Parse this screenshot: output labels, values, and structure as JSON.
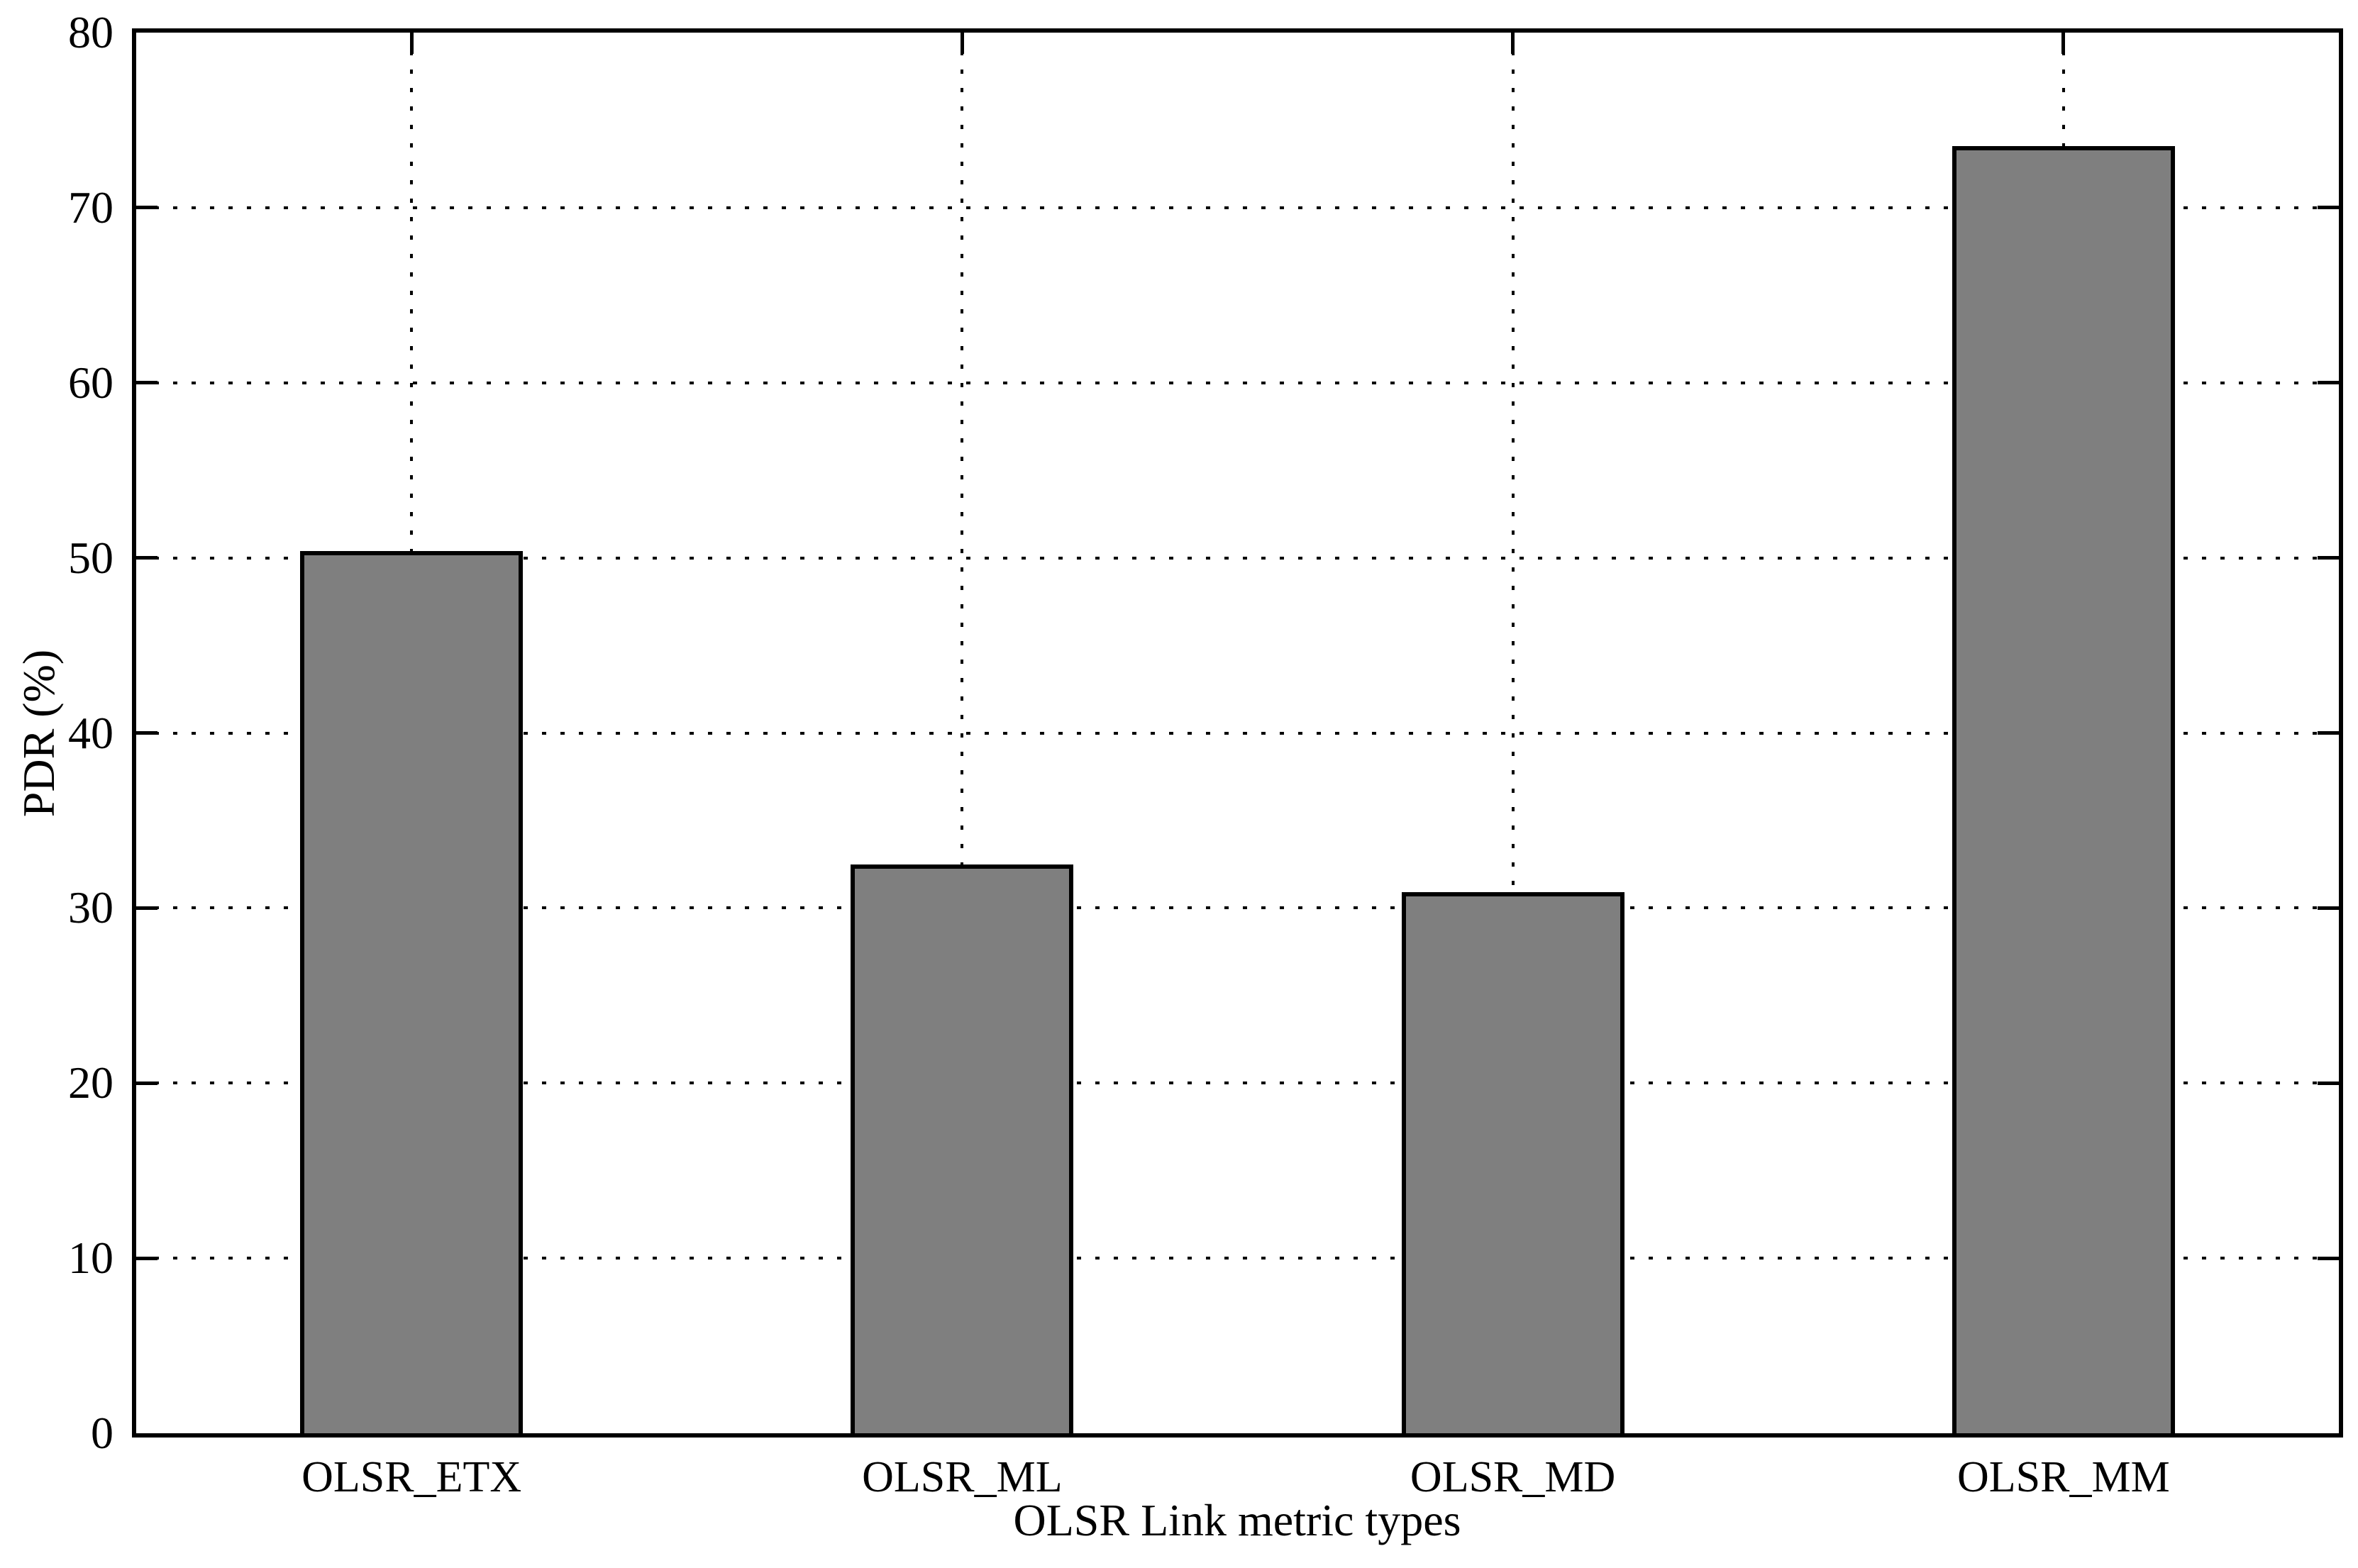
{
  "chart_data": {
    "type": "bar",
    "title": "",
    "xlabel": "OLSR Link metric types",
    "ylabel": "PDR (%)",
    "categories": [
      "OLSR_ETX",
      "OLSR_ML",
      "OLSR_MD",
      "OLSR_MM"
    ],
    "values": [
      50.4,
      32.5,
      30.9,
      73.5
    ],
    "ylim": [
      0,
      80
    ],
    "yticks": [
      0,
      10,
      20,
      30,
      40,
      50,
      60,
      70,
      80
    ],
    "grid": {
      "horizontal": true,
      "vertical": true,
      "style": "dotted",
      "color": "#000000"
    },
    "legend_position": "none",
    "bar_fill_color": "#7f7f7f",
    "bar_edge_color": "#000000",
    "axis_color": "#000000",
    "background_color": "#ffffff"
  }
}
